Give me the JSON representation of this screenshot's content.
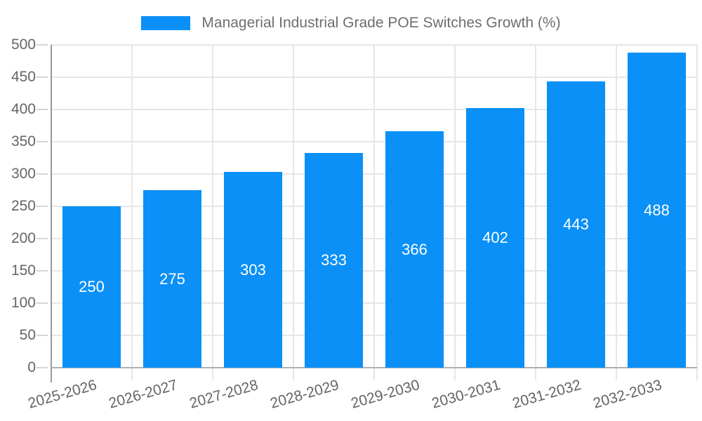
{
  "legend": {
    "label": "Managerial Industrial Grade POE Switches Growth (%)"
  },
  "chart_data": {
    "type": "bar",
    "title": "Managerial Industrial Grade POE Switches Growth (%)",
    "categories": [
      "2025-2026",
      "2026-2027",
      "2027-2028",
      "2028-2029",
      "2029-2030",
      "2030-2031",
      "2031-2032",
      "2032-2033"
    ],
    "values": [
      250,
      275,
      303,
      333,
      366,
      402,
      443,
      488
    ],
    "xlabel": "",
    "ylabel": "",
    "ylim": [
      0,
      500
    ],
    "ytick_step": 50,
    "yticks": [
      0,
      50,
      100,
      150,
      200,
      250,
      300,
      350,
      400,
      450,
      500
    ],
    "grid": true,
    "legend_position": "top-center",
    "value_label_position": "inside-center",
    "x_label_rotation_deg": -16
  },
  "colors": {
    "bar": "#0a90f6",
    "value_label": "#ffffff",
    "grid": "#e6e6e6",
    "y_axis_line": "#999999",
    "x_axis_line": "#b0b0b0",
    "tick": "#d6d6d6",
    "tick_label": "#666666",
    "title": "#6e6e6e",
    "background": "#ffffff"
  }
}
